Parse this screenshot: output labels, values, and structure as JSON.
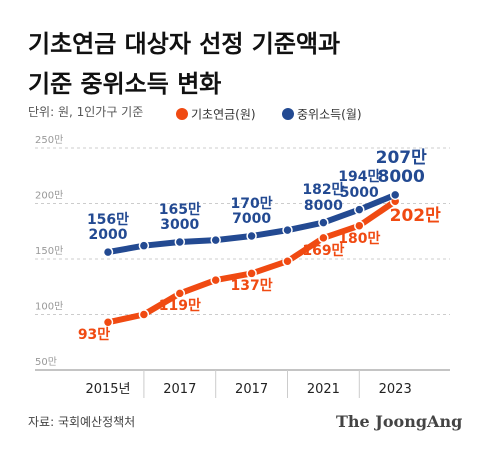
{
  "chart_data": {
    "type": "line",
    "title": "기초연금 대상자 선정 기준액과\n기준 중위소득 변화",
    "subtitle": "단위: 원, 1인가구 기준",
    "categories": [
      "2015년",
      null,
      "2017",
      null,
      "2017",
      null,
      "2021",
      null,
      "2023"
    ],
    "series": [
      {
        "name": "기초연금(원)",
        "color": "#f04a12",
        "values": [
          93,
          100,
          119,
          131,
          137,
          148,
          169,
          180,
          202
        ],
        "value_labels": [
          "93만",
          null,
          "119만",
          null,
          "137만",
          null,
          "169만",
          "180만",
          "202만"
        ]
      },
      {
        "name": "중위소득(월)",
        "color": "#234a92",
        "values": [
          156.2,
          162,
          165.3,
          167,
          170.7,
          176,
          182.8,
          194.5,
          207.8
        ],
        "value_labels": [
          "156만\n2000",
          null,
          "165만\n3000",
          null,
          "170만\n7000",
          null,
          "182만\n8000",
          "194만\n5000",
          "207만\n8000"
        ]
      }
    ],
    "ylim": [
      50,
      250
    ],
    "yticks": [
      {
        "value": 50,
        "label": "50만"
      },
      {
        "value": 100,
        "label": "100만"
      },
      {
        "value": 150,
        "label": "150만"
      },
      {
        "value": 200,
        "label": "200만"
      },
      {
        "value": 250,
        "label": "250만"
      }
    ],
    "grid": true,
    "source": "자료: 국회예산정책처",
    "brand": "The JoongAng"
  }
}
